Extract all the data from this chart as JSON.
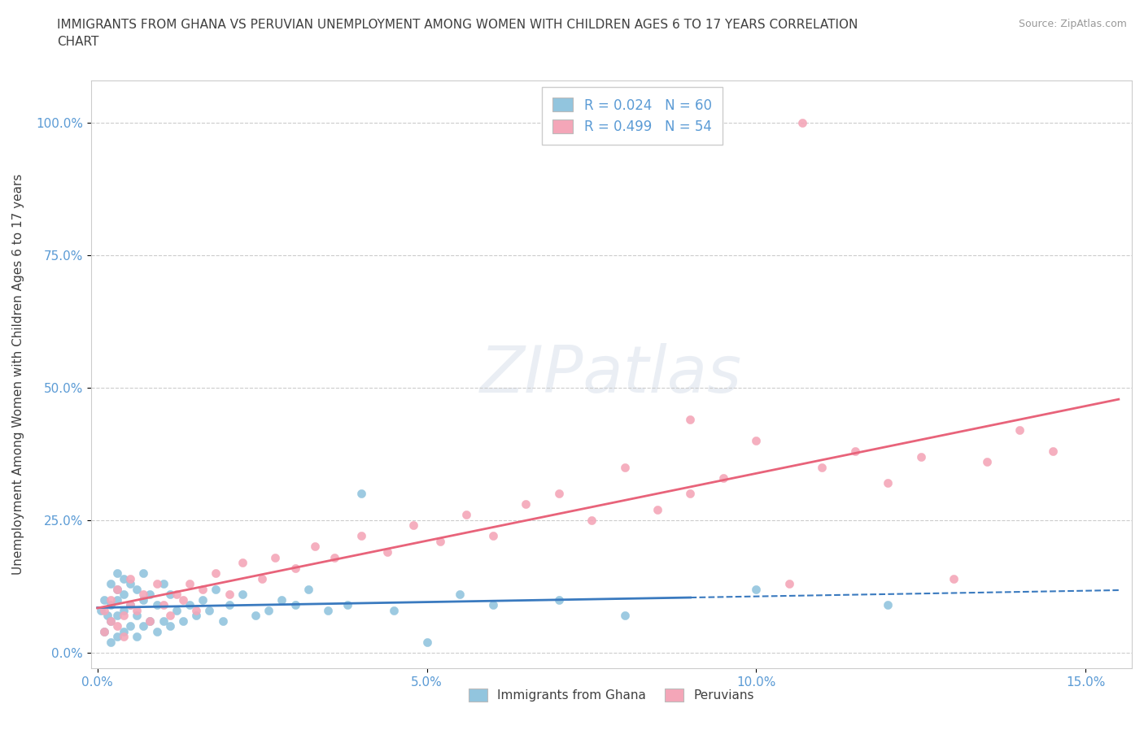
{
  "title": "IMMIGRANTS FROM GHANA VS PERUVIAN UNEMPLOYMENT AMONG WOMEN WITH CHILDREN AGES 6 TO 17 YEARS CORRELATION\nCHART",
  "source": "Source: ZipAtlas.com",
  "ylabel": "Unemployment Among Women with Children Ages 6 to 17 years",
  "xlim_min": -0.001,
  "xlim_max": 0.157,
  "ylim_min": -0.03,
  "ylim_max": 1.08,
  "yticks": [
    0.0,
    0.25,
    0.5,
    0.75,
    1.0
  ],
  "ytick_labels": [
    "0.0%",
    "25.0%",
    "50.0%",
    "75.0%",
    "100.0%"
  ],
  "xticks": [
    0.0,
    0.05,
    0.1,
    0.15
  ],
  "xtick_labels": [
    "0.0%",
    "5.0%",
    "10.0%",
    "15.0%"
  ],
  "blue_color": "#92c5de",
  "pink_color": "#f4a6b8",
  "blue_line_color": "#3a7abf",
  "pink_line_color": "#e8637a",
  "axis_color": "#5b9bd5",
  "title_color": "#404040",
  "legend_r1": "R = 0.024",
  "legend_n1": "N = 60",
  "legend_r2": "R = 0.499",
  "legend_n2": "N = 54",
  "watermark": "ZIPatlas",
  "ghana_x": [
    0.0005,
    0.001,
    0.001,
    0.0015,
    0.002,
    0.002,
    0.002,
    0.002,
    0.003,
    0.003,
    0.003,
    0.003,
    0.003,
    0.004,
    0.004,
    0.004,
    0.004,
    0.005,
    0.005,
    0.005,
    0.006,
    0.006,
    0.006,
    0.007,
    0.007,
    0.007,
    0.008,
    0.008,
    0.009,
    0.009,
    0.01,
    0.01,
    0.011,
    0.011,
    0.012,
    0.013,
    0.014,
    0.015,
    0.016,
    0.017,
    0.018,
    0.019,
    0.02,
    0.022,
    0.024,
    0.026,
    0.028,
    0.03,
    0.032,
    0.035,
    0.038,
    0.04,
    0.045,
    0.05,
    0.055,
    0.06,
    0.07,
    0.08,
    0.1,
    0.12
  ],
  "ghana_y": [
    0.08,
    0.04,
    0.1,
    0.07,
    0.02,
    0.06,
    0.09,
    0.13,
    0.03,
    0.07,
    0.1,
    0.12,
    0.15,
    0.04,
    0.08,
    0.11,
    0.14,
    0.05,
    0.09,
    0.13,
    0.03,
    0.07,
    0.12,
    0.05,
    0.1,
    0.15,
    0.06,
    0.11,
    0.04,
    0.09,
    0.06,
    0.13,
    0.05,
    0.11,
    0.08,
    0.06,
    0.09,
    0.07,
    0.1,
    0.08,
    0.12,
    0.06,
    0.09,
    0.11,
    0.07,
    0.08,
    0.1,
    0.09,
    0.12,
    0.08,
    0.09,
    0.3,
    0.08,
    0.02,
    0.11,
    0.09,
    0.1,
    0.07,
    0.12,
    0.09
  ],
  "peru_x": [
    0.001,
    0.001,
    0.002,
    0.002,
    0.003,
    0.003,
    0.004,
    0.004,
    0.005,
    0.005,
    0.006,
    0.007,
    0.008,
    0.009,
    0.01,
    0.011,
    0.012,
    0.013,
    0.014,
    0.015,
    0.016,
    0.018,
    0.02,
    0.022,
    0.025,
    0.027,
    0.03,
    0.033,
    0.036,
    0.04,
    0.044,
    0.048,
    0.052,
    0.056,
    0.06,
    0.065,
    0.07,
    0.075,
    0.08,
    0.085,
    0.09,
    0.095,
    0.1,
    0.105,
    0.11,
    0.115,
    0.12,
    0.125,
    0.13,
    0.135,
    0.14,
    0.145,
    0.09,
    0.107
  ],
  "peru_y": [
    0.04,
    0.08,
    0.06,
    0.1,
    0.05,
    0.12,
    0.07,
    0.03,
    0.09,
    0.14,
    0.08,
    0.11,
    0.06,
    0.13,
    0.09,
    0.07,
    0.11,
    0.1,
    0.13,
    0.08,
    0.12,
    0.15,
    0.11,
    0.17,
    0.14,
    0.18,
    0.16,
    0.2,
    0.18,
    0.22,
    0.19,
    0.24,
    0.21,
    0.26,
    0.22,
    0.28,
    0.3,
    0.25,
    0.35,
    0.27,
    0.3,
    0.33,
    0.4,
    0.13,
    0.35,
    0.38,
    0.32,
    0.37,
    0.14,
    0.36,
    0.42,
    0.38,
    0.44,
    1.0
  ]
}
